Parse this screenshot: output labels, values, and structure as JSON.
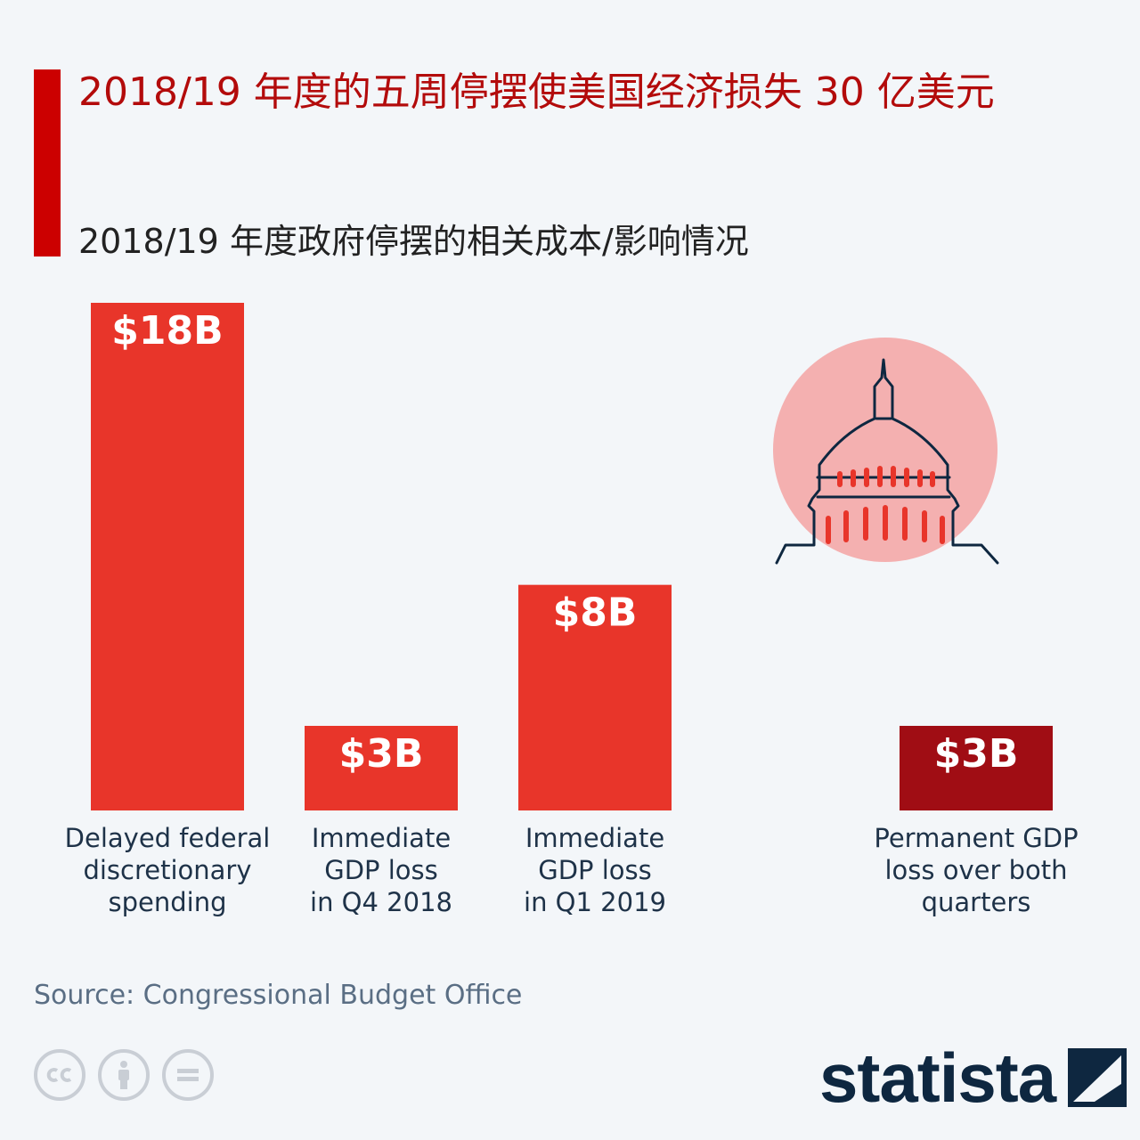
{
  "header": {
    "title": "2018/19 年度的五周停摆使美国经济损失 30 亿美元",
    "subtitle": "2018/19 年度政府停摆的相关成本/影响情况"
  },
  "footer": {
    "source": "Source: Congressional Budget Office",
    "brand": "statista",
    "license_icons": [
      "cc-icon",
      "attribution-icon",
      "no-derivatives-icon"
    ]
  },
  "colors": {
    "accent": "#cc0000",
    "bar": "#e8352a",
    "bar_highlight": "#a00d14",
    "capitol_circle": "#f4b0b0",
    "navy": "#0e2740"
  },
  "chart_data": {
    "type": "bar",
    "title": "2018/19 年度的五周停摆使美国经济损失 30 亿美元",
    "unit": "billion USD",
    "categories": [
      "Delayed federal discretionary spending",
      "Immediate GDP loss in Q4 2018",
      "Immediate GDP loss in Q1 2019",
      "Permanent GDP loss over both quarters"
    ],
    "category_lines": [
      [
        "Delayed federal",
        "discretionary",
        "spending"
      ],
      [
        "Immediate",
        "GDP loss",
        "in Q4 2018"
      ],
      [
        "Immediate",
        "GDP loss",
        "in Q1 2019"
      ],
      [
        "Permanent GDP",
        "loss over both",
        "quarters"
      ]
    ],
    "values": [
      18,
      3,
      8,
      3
    ],
    "data_labels": [
      "$18B",
      "$3B",
      "$8B",
      "$3B"
    ],
    "highlight_index": 3,
    "ylim": [
      0,
      18
    ],
    "grid": false,
    "legend": "none",
    "xlabel": "",
    "ylabel": ""
  }
}
